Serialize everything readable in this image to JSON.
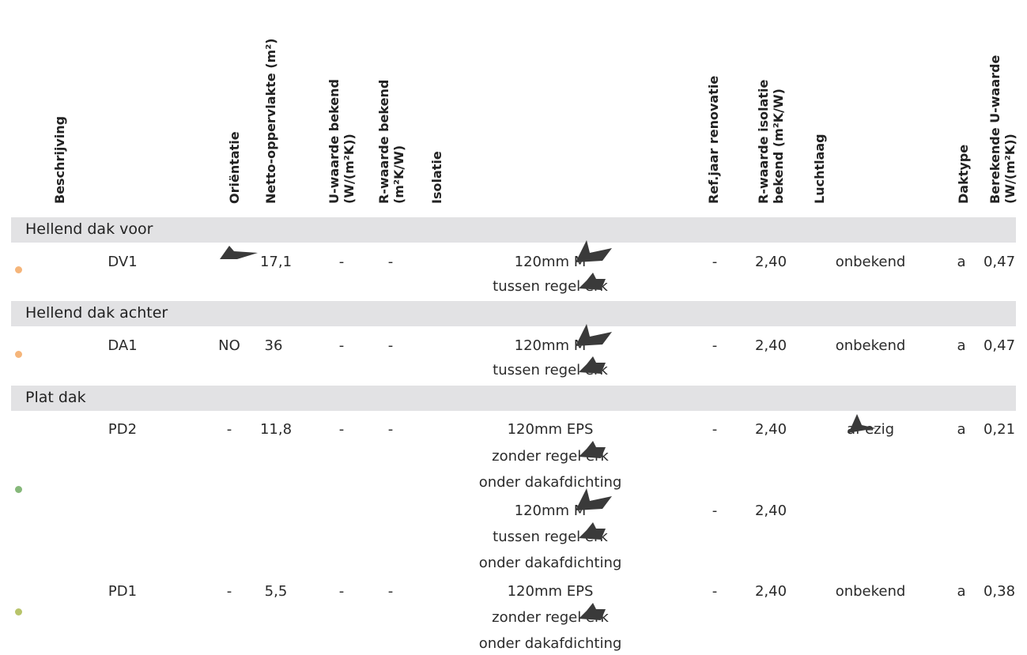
{
  "headers": {
    "beschrijving": "Beschrijving",
    "orientatie": "Oriëntatie",
    "netto": "Netto-oppervlakte (m²)",
    "u_bekend_1": "U-waarde bekend",
    "u_bekend_2": "(W/(m²K))",
    "r_bekend_1": "R-waarde bekend",
    "r_bekend_2": "(m²K/W)",
    "isolatie": "Isolatie",
    "refjaar": "Ref.jaar renovatie",
    "r_isolatie_1": "R-waarde isolatie",
    "r_isolatie_2": "bekend (m²K/W)",
    "luchtlaag": "Luchtlaag",
    "daktype": "Daktype",
    "berekende_1": "Berekende U-waarde",
    "berekende_2": "(W/(m²K))"
  },
  "sections": [
    {
      "title": "Hellend dak voor",
      "rows": [
        {
          "beschrijving": "DV1",
          "orientatie": "",
          "netto": "17,1",
          "u_bekend": "-",
          "r_bekend": "-",
          "isolatie": [
            "120mm M",
            "tussen regel erk"
          ],
          "refjaar": [
            "-"
          ],
          "r_isolatie": [
            "2,40"
          ],
          "luchtlaag": "onbekend",
          "daktype": "a",
          "berekende": "0,47",
          "dot_color": "#f5b57a"
        }
      ]
    },
    {
      "title": "Hellend dak achter",
      "rows": [
        {
          "beschrijving": "DA1",
          "orientatie": "NO",
          "netto": "36",
          "u_bekend": "-",
          "r_bekend": "-",
          "isolatie": [
            "120mm M",
            "tussen regel erk"
          ],
          "refjaar": [
            "-"
          ],
          "r_isolatie": [
            "2,40"
          ],
          "luchtlaag": "onbekend",
          "daktype": "a",
          "berekende": "0,47",
          "dot_color": "#f5b57a"
        }
      ]
    },
    {
      "title": "Plat dak",
      "rows": [
        {
          "beschrijving": "PD2",
          "orientatie": "-",
          "netto": "11,8",
          "u_bekend": "-",
          "r_bekend": "-",
          "isolatie": [
            "120mm EPS",
            "zonder regel erk",
            "onder dakafdichting",
            "120mm M",
            "tussen regel erk",
            "onder dakafdichting"
          ],
          "refjaar": [
            "-",
            "-"
          ],
          "r_isolatie": [
            "2,40",
            "2,40"
          ],
          "luchtlaag": "af ezig",
          "daktype": "a",
          "berekende": "0,21",
          "dot_color": "#86b87a"
        },
        {
          "beschrijving": "PD1",
          "orientatie": "-",
          "netto": "5,5",
          "u_bekend": "-",
          "r_bekend": "-",
          "isolatie": [
            "120mm EPS",
            "zonder regel erk",
            "onder dakafdichting"
          ],
          "refjaar": [
            "-"
          ],
          "r_isolatie": [
            "2,40"
          ],
          "luchtlaag": "onbekend",
          "daktype": "a",
          "berekende": "0,38",
          "dot_color": "#b8c46a"
        }
      ]
    }
  ],
  "colors": {
    "band": "#e2e2e4",
    "redaction": "#3a3a3a",
    "dot_orange": "#f5b57a",
    "dot_green": "#86b87a",
    "dot_lime": "#b8c46a"
  }
}
